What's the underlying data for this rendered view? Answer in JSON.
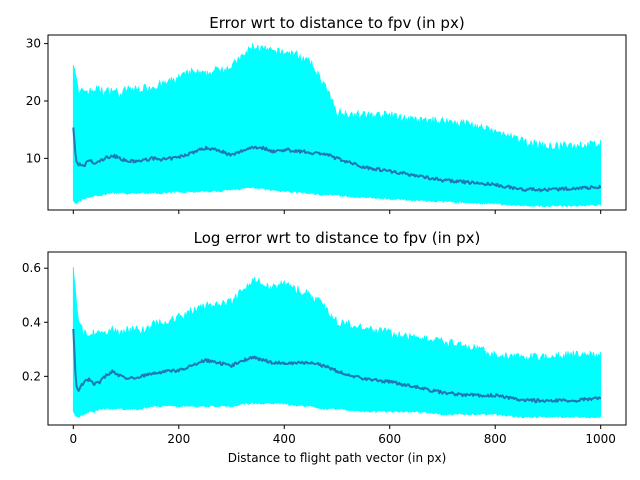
{
  "chart_data": [
    {
      "type": "area",
      "title": "Error wrt to distance to fpv (in px)",
      "xlabel": "",
      "ylabel": "",
      "xlim": [
        -48,
        1048
      ],
      "ylim": [
        1.0,
        31.5
      ],
      "xticks": [
        0,
        200,
        400,
        600,
        800,
        1000
      ],
      "show_xtick_labels": false,
      "yticks": [
        10,
        20,
        30
      ],
      "ytick_labels": [
        "10",
        "20",
        "30"
      ],
      "grid": false,
      "band_color": "#00ffff",
      "line_color": "#1f77b4",
      "x": [
        0,
        5,
        10,
        20,
        30,
        40,
        50,
        60,
        75,
        90,
        100,
        125,
        150,
        175,
        200,
        225,
        250,
        275,
        300,
        325,
        340,
        360,
        380,
        400,
        425,
        450,
        475,
        500,
        550,
        600,
        650,
        700,
        750,
        800,
        850,
        900,
        950,
        1000
      ],
      "mean": [
        15.5,
        9.5,
        9.0,
        8.5,
        9.8,
        9.0,
        9.5,
        10.0,
        10.5,
        10.0,
        9.5,
        9.5,
        10.0,
        9.8,
        10.2,
        11.0,
        11.8,
        11.5,
        10.5,
        11.5,
        12.0,
        11.8,
        11.2,
        11.5,
        11.3,
        11.0,
        10.8,
        10.0,
        8.5,
        7.8,
        7.0,
        6.2,
        5.8,
        5.4,
        4.6,
        4.5,
        4.8,
        5.0
      ],
      "upper": [
        27.0,
        24.5,
        21.0,
        22.0,
        21.5,
        22.0,
        22.0,
        21.5,
        22.0,
        21.0,
        22.0,
        22.0,
        22.5,
        23.0,
        24.0,
        25.0,
        24.5,
        25.5,
        26.0,
        28.0,
        29.5,
        29.0,
        28.5,
        28.5,
        28.0,
        26.5,
        23.0,
        18.0,
        17.5,
        17.5,
        16.5,
        16.5,
        16.0,
        14.5,
        13.0,
        12.0,
        12.2,
        12.5
      ],
      "lower": [
        2.5,
        2.0,
        2.5,
        3.0,
        3.3,
        3.5,
        3.5,
        3.8,
        4.0,
        4.0,
        3.8,
        4.0,
        4.0,
        4.0,
        4.2,
        4.2,
        4.3,
        4.3,
        4.5,
        4.8,
        5.0,
        4.7,
        4.4,
        4.3,
        4.1,
        3.9,
        3.7,
        3.6,
        3.2,
        3.0,
        2.7,
        2.5,
        2.3,
        2.1,
        1.8,
        1.7,
        1.8,
        1.9
      ]
    },
    {
      "type": "area",
      "title": "Log error wrt to distance to fpv (in px)",
      "xlabel": "Distance to flight path vector (in px)",
      "ylabel": "",
      "xlim": [
        -48,
        1048
      ],
      "ylim": [
        0.02,
        0.66
      ],
      "xticks": [
        0,
        200,
        400,
        600,
        800,
        1000
      ],
      "show_xtick_labels": true,
      "xtick_labels": [
        "0",
        "200",
        "400",
        "600",
        "800",
        "1000"
      ],
      "yticks": [
        0.2,
        0.4,
        0.6
      ],
      "ytick_labels": [
        "0.2",
        "0.4",
        "0.6"
      ],
      "grid": false,
      "band_color": "#00ffff",
      "line_color": "#1f77b4",
      "x": [
        0,
        5,
        10,
        20,
        30,
        40,
        50,
        60,
        75,
        90,
        100,
        125,
        150,
        175,
        200,
        225,
        250,
        275,
        300,
        325,
        340,
        360,
        380,
        400,
        425,
        450,
        475,
        500,
        550,
        600,
        650,
        700,
        750,
        800,
        850,
        900,
        950,
        1000
      ],
      "mean": [
        0.38,
        0.17,
        0.15,
        0.18,
        0.19,
        0.17,
        0.18,
        0.2,
        0.22,
        0.2,
        0.19,
        0.2,
        0.21,
        0.22,
        0.22,
        0.24,
        0.26,
        0.25,
        0.24,
        0.26,
        0.27,
        0.26,
        0.25,
        0.25,
        0.25,
        0.25,
        0.24,
        0.22,
        0.19,
        0.18,
        0.16,
        0.14,
        0.13,
        0.13,
        0.11,
        0.11,
        0.11,
        0.12
      ],
      "upper": [
        0.62,
        0.48,
        0.4,
        0.36,
        0.35,
        0.36,
        0.37,
        0.36,
        0.37,
        0.36,
        0.37,
        0.37,
        0.39,
        0.4,
        0.42,
        0.44,
        0.46,
        0.47,
        0.48,
        0.52,
        0.56,
        0.54,
        0.53,
        0.54,
        0.52,
        0.5,
        0.46,
        0.4,
        0.38,
        0.36,
        0.34,
        0.33,
        0.31,
        0.28,
        0.27,
        0.27,
        0.28,
        0.28
      ],
      "lower": [
        0.07,
        0.05,
        0.05,
        0.06,
        0.07,
        0.07,
        0.08,
        0.08,
        0.08,
        0.08,
        0.08,
        0.08,
        0.09,
        0.09,
        0.09,
        0.09,
        0.09,
        0.09,
        0.09,
        0.1,
        0.1,
        0.1,
        0.1,
        0.1,
        0.09,
        0.09,
        0.08,
        0.08,
        0.07,
        0.07,
        0.07,
        0.06,
        0.06,
        0.06,
        0.05,
        0.05,
        0.05,
        0.05
      ]
    }
  ]
}
